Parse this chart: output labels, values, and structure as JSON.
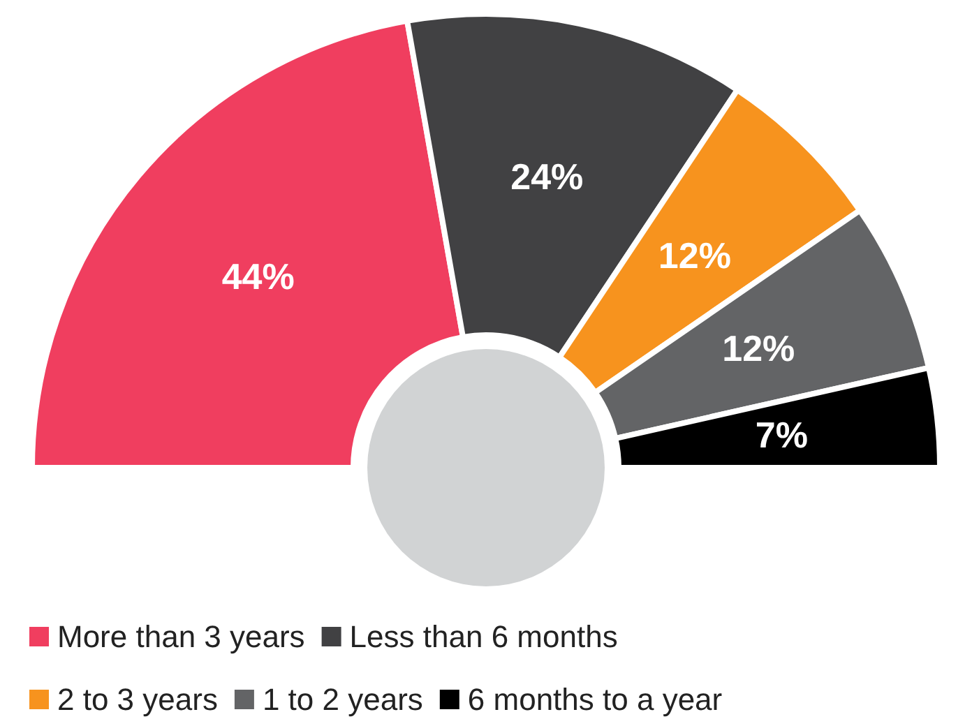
{
  "chart_data": {
    "type": "donut",
    "categories": [
      "More than 3 years",
      "Less than 6 months",
      "2 to 3 years",
      "1 to 2 years",
      "6 months to a year"
    ],
    "values": [
      44,
      24,
      12,
      12,
      7
    ],
    "value_labels": [
      "44%",
      "24%",
      "12%",
      "12%",
      "7%"
    ],
    "colors": [
      "#f03e5f",
      "#414143",
      "#f7931e",
      "#636466",
      "#000000"
    ],
    "legend": "bottom"
  }
}
